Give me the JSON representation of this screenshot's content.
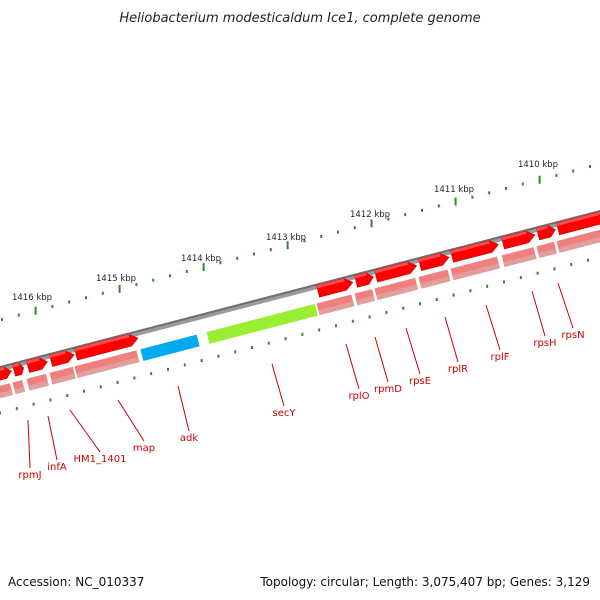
{
  "title": "Heliobacterium modesticaldum Ice1, complete genome",
  "footer": {
    "accession": "Accession: NC_010337",
    "topology": "Topology: circular; Length: 3,075,407 bp; Genes: 3,129"
  },
  "colors": {
    "backbone": "#808080",
    "gene_forward": "#ff0000",
    "gene_fill_light": "#f08080",
    "gene_adk": "#00aaee",
    "gene_secY": "#99ee33",
    "tick": "#2a8a2a",
    "label": "#cc0000"
  },
  "scale": {
    "unit": "kbp",
    "labels": [
      "1416 kbp",
      "1415 kbp",
      "1414 kbp",
      "1413 kbp",
      "1412 kbp",
      "1411 kbp",
      "1410 kbp"
    ]
  },
  "genes": [
    {
      "name": "rpmJ",
      "color_key": "gene_forward"
    },
    {
      "name": "infA",
      "color_key": "gene_forward"
    },
    {
      "name": "HM1_1401",
      "color_key": "gene_forward"
    },
    {
      "name": "map",
      "color_key": "gene_forward"
    },
    {
      "name": "adk",
      "color_key": "gene_adk"
    },
    {
      "name": "secY",
      "color_key": "gene_secY"
    },
    {
      "name": "rplO",
      "color_key": "gene_forward"
    },
    {
      "name": "rpmD",
      "color_key": "gene_forward"
    },
    {
      "name": "rpsE",
      "color_key": "gene_forward"
    },
    {
      "name": "rplR",
      "color_key": "gene_forward"
    },
    {
      "name": "rplF",
      "color_key": "gene_forward"
    },
    {
      "name": "rpsH",
      "color_key": "gene_forward"
    },
    {
      "name": "rpsN",
      "color_key": "gene_forward"
    }
  ]
}
